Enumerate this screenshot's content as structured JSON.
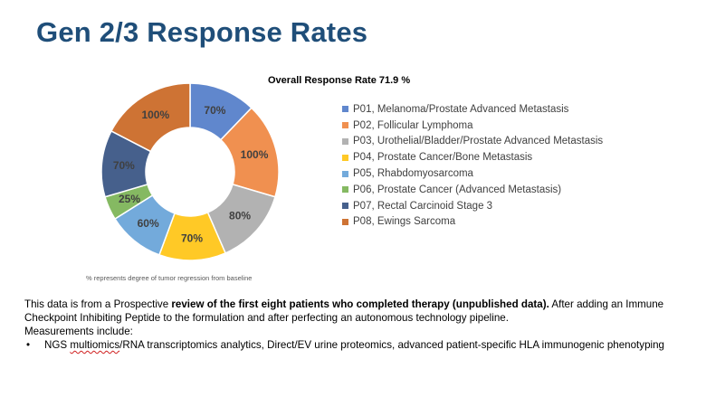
{
  "slide": {
    "title": "Gen 2/3 Response Rates"
  },
  "chart_data": {
    "type": "pie",
    "variant": "donut",
    "title": "Overall Response Rate 71.9 %",
    "legend_position": "right",
    "slices": [
      {
        "name": "P01, Melanoma/Prostate Advanced Metastasis",
        "value": 70,
        "label": "70%",
        "color": "#4472c4"
      },
      {
        "name": "P02, Follicular Lymphoma",
        "value": 100,
        "label": "100%",
        "color": "#ed7d31"
      },
      {
        "name": "P03, Urothelial/Bladder/Prostate Advanced Metastasis",
        "value": 80,
        "label": "80%",
        "color": "#a5a5a5"
      },
      {
        "name": "P04, Prostate Cancer/Bone Metastasis",
        "value": 70,
        "label": "70%",
        "color": "#ffc000"
      },
      {
        "name": "P05, Rhabdomyosarcoma",
        "value": 60,
        "label": "60%",
        "color": "#5b9bd5"
      },
      {
        "name": "P06, Prostate Cancer (Advanced Metastasis)",
        "value": 25,
        "label": "25%",
        "color": "#70ad47"
      },
      {
        "name": "P07, Rectal Carcinoid Stage 3",
        "value": 70,
        "label": "70%",
        "color": "#264478"
      },
      {
        "name": "P08, Ewings Sarcoma",
        "value": 100,
        "label": "100%",
        "color": "#c55a11"
      }
    ],
    "footnote": "% represents degree of tumor regression from baseline"
  },
  "body": {
    "intro_before": "This data is from a Prospective ",
    "intro_bold": "review of the first eight patients who completed therapy (unpublished data).",
    "intro_after": " After adding an Immune Checkpoint Inhibiting Peptide to the formulation and after perfecting an autonomous technology pipeline.",
    "measurements_label": "Measurements include:",
    "bullet_marker": "•",
    "bullet_prefix": "NGS ",
    "bullet_misspelled": "multiomics",
    "bullet_rest": "/RNA transcriptomics analytics, Direct/EV urine proteomics, advanced patient-specific HLA immunogenic phenotyping"
  }
}
